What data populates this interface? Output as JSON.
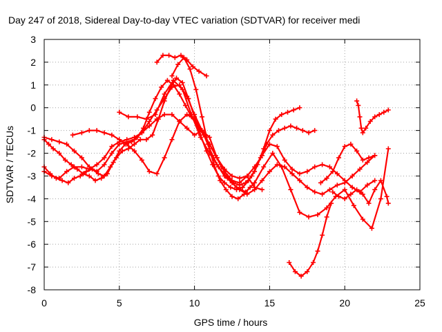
{
  "chart_data": {
    "type": "scatter",
    "title": "Day 247 of 2018, Sidereal Day-to-day VTEC variation (SDTVAR) for receiver medi",
    "xlabel": "GPS time / hours",
    "ylabel": "SDTVAR / TECUs",
    "xlim": [
      0,
      25
    ],
    "ylim": [
      -8,
      3
    ],
    "xticks": [
      0,
      5,
      10,
      15,
      20,
      25
    ],
    "yticks": [
      -8,
      -7,
      -6,
      -5,
      -4,
      -3,
      -2,
      -1,
      0,
      1,
      2,
      3
    ],
    "grid": true,
    "marker": "+",
    "color": "#ff0000",
    "series": [
      {
        "x": [
          0,
          0.3,
          0.6,
          1.0,
          1.4,
          1.8,
          2.2,
          2.6,
          3.0,
          3.4,
          3.8,
          4.2,
          4.6,
          5.0,
          5.4,
          5.8,
          6.2,
          6.6,
          7.0,
          7.4,
          7.8,
          8.2,
          8.6,
          9.0,
          9.4,
          9.8,
          10.2,
          10.6,
          11.0,
          11.4,
          11.8,
          12.2,
          12.6,
          13.0,
          13.4,
          13.8,
          14.2,
          14.6,
          15.0,
          15.4,
          15.8,
          16.2,
          16.6,
          17.0
        ],
        "y": [
          -1.4,
          -1.6,
          -1.8,
          -2.0,
          -2.3,
          -2.5,
          -2.7,
          -2.9,
          -3.0,
          -3.2,
          -3.1,
          -2.9,
          -2.4,
          -1.9,
          -1.6,
          -1.5,
          -1.3,
          -0.9,
          -0.2,
          0.4,
          0.9,
          1.2,
          1.0,
          0.6,
          0.1,
          -0.4,
          -0.8,
          -1.2,
          -1.6,
          -2.1,
          -2.6,
          -3.0,
          -3.3,
          -3.4,
          -3.3,
          -3.0,
          -2.5,
          -1.8,
          -1.0,
          -0.5,
          -0.3,
          -0.2,
          -0.1,
          0.0
        ]
      },
      {
        "x": [
          0,
          0.4,
          0.8,
          1.2,
          1.6,
          2.0,
          2.4,
          2.8,
          3.2,
          3.6,
          4.0,
          4.4,
          4.8,
          5.2,
          5.6,
          6.0,
          6.4,
          6.8,
          7.2,
          7.6,
          8.0,
          8.4,
          8.8,
          9.2,
          9.6,
          10.0,
          10.4,
          10.8,
          11.2,
          11.6,
          12.0,
          12.4,
          12.8,
          13.2,
          13.6,
          14.0,
          14.4,
          14.8,
          15.2,
          15.6,
          16.0,
          16.4,
          16.8,
          17.2,
          17.6,
          18.0
        ],
        "y": [
          -2.6,
          -2.9,
          -3.1,
          -3.2,
          -3.3,
          -3.1,
          -3.0,
          -2.8,
          -2.7,
          -2.9,
          -3.0,
          -2.6,
          -2.2,
          -1.9,
          -1.8,
          -1.6,
          -1.4,
          -1.4,
          -1.2,
          -0.5,
          0.3,
          0.9,
          1.3,
          1.1,
          0.4,
          -0.4,
          -1.2,
          -1.9,
          -2.5,
          -3.0,
          -3.3,
          -3.5,
          -3.6,
          -3.5,
          -3.2,
          -2.8,
          -2.2,
          -1.6,
          -1.2,
          -1.0,
          -0.9,
          -0.8,
          -0.9,
          -1.0,
          -1.1,
          -1.0
        ]
      },
      {
        "x": [
          0,
          0.5,
          1.0,
          1.5,
          2.0,
          2.5,
          3.0,
          3.5,
          4.0,
          4.5,
          5.0,
          5.5,
          6.0,
          6.5,
          7.0,
          7.5,
          8.0,
          8.5,
          9.0,
          9.5,
          10.0,
          10.5,
          11.0,
          11.5,
          12.0,
          12.5,
          13.0,
          13.5,
          14.0,
          14.5,
          15.0,
          15.5,
          16.0,
          16.5,
          17.0,
          17.5,
          18.0,
          18.5,
          19.0,
          19.5,
          20.0,
          20.5,
          21.0,
          21.5,
          22.0
        ],
        "y": [
          -2.8,
          -3.0,
          -3.1,
          -2.8,
          -2.6,
          -2.6,
          -2.7,
          -2.5,
          -2.2,
          -1.7,
          -1.5,
          -1.4,
          -1.3,
          -1.1,
          -0.8,
          -0.5,
          -0.3,
          -0.3,
          -0.6,
          -0.9,
          -1.2,
          -1.0,
          -1.3,
          -2.2,
          -2.8,
          -3.2,
          -3.3,
          -3.0,
          -2.6,
          -2.1,
          -1.6,
          -1.7,
          -2.3,
          -2.7,
          -2.9,
          -2.8,
          -2.6,
          -2.5,
          -2.6,
          -2.9,
          -3.2,
          -3.5,
          -3.7,
          -3.4,
          -3.2
        ]
      },
      {
        "x": [
          1.9,
          2.5,
          3.0,
          3.5,
          4.0,
          4.5,
          5.0,
          5.5,
          6.0,
          6.5,
          7.0,
          7.5,
          8.0,
          8.5,
          9.0,
          9.5,
          10.0,
          10.5,
          11.0,
          11.5,
          12.0,
          12.5,
          13.0,
          13.5,
          14.0,
          14.5,
          15.0,
          15.5,
          16.0,
          16.5,
          17.0,
          17.5,
          18.0,
          18.5,
          19.0,
          19.5,
          20.0,
          20.5,
          21.0,
          21.5,
          22.0
        ],
        "y": [
          -1.2,
          -1.1,
          -1.0,
          -1.0,
          -1.1,
          -1.2,
          -1.4,
          -1.6,
          -1.9,
          -2.3,
          -2.8,
          -2.9,
          -2.2,
          -1.4,
          -0.6,
          -0.3,
          -0.5,
          -1.0,
          -1.8,
          -2.5,
          -3.0,
          -3.3,
          -3.6,
          -3.8,
          -3.6,
          -3.2,
          -2.8,
          -2.5,
          -2.6,
          -2.9,
          -3.2,
          -3.5,
          -3.7,
          -3.8,
          -3.6,
          -3.4,
          -3.3,
          -3.0,
          -2.7,
          -2.4,
          -2.1
        ]
      },
      {
        "x": [
          0,
          0.5,
          1.0,
          1.5,
          2.0,
          2.5,
          3.0,
          3.5,
          4.0,
          4.5,
          5.0,
          5.5,
          6.0,
          6.5,
          7.0,
          7.5,
          8.0,
          8.5,
          9.0,
          9.5,
          10.0,
          10.5,
          11.0,
          11.5,
          12.0,
          12.5,
          13.0,
          13.5,
          14.0,
          14.5
        ],
        "y": [
          -1.3,
          -1.4,
          -1.5,
          -1.6,
          -1.9,
          -2.2,
          -2.6,
          -2.8,
          -2.5,
          -2.0,
          -1.6,
          -1.5,
          -1.4,
          -1.1,
          -0.6,
          -0.1,
          0.4,
          0.9,
          1.0,
          0.5,
          -0.3,
          -1.0,
          -1.6,
          -2.2,
          -2.7,
          -3.0,
          -3.1,
          -3.0,
          -3.5,
          -3.6
        ]
      },
      {
        "x": [
          5.0,
          5.6,
          6.2,
          6.8,
          7.4,
          8.0,
          8.6,
          9.2,
          9.8,
          10.4,
          11.0,
          11.6,
          12.2,
          12.8,
          13.4,
          14.0,
          14.6,
          15.2,
          15.8,
          16.4,
          17.0,
          17.6,
          18.2,
          18.8,
          19.4,
          20.0,
          20.6,
          21.2,
          21.8,
          22.4,
          22.9
        ],
        "y": [
          -0.2,
          -0.4,
          -0.4,
          -0.5,
          -0.3,
          0.6,
          1.2,
          0.8,
          -0.3,
          -1.3,
          -2.0,
          -2.6,
          -3.1,
          -3.5,
          -3.7,
          -3.3,
          -2.6,
          -2.0,
          -2.6,
          -3.6,
          -4.6,
          -4.8,
          -4.7,
          -4.4,
          -3.9,
          -3.6,
          -4.3,
          -4.9,
          -5.3,
          -4.0,
          -1.8
        ]
      },
      {
        "x": [
          7.5,
          7.9,
          8.3,
          8.7,
          9.1,
          9.5,
          9.9,
          10.3,
          10.8
        ],
        "y": [
          2.0,
          2.3,
          2.3,
          2.2,
          2.3,
          2.1,
          1.8,
          1.6,
          1.4
        ]
      },
      {
        "x": [
          8.5,
          8.9,
          9.3,
          9.7,
          10.1,
          10.5,
          10.9,
          11.3,
          11.7,
          12.1,
          12.5,
          12.9,
          13.3,
          13.7
        ],
        "y": [
          1.4,
          1.9,
          2.2,
          1.7,
          0.8,
          -0.4,
          -1.6,
          -2.5,
          -3.2,
          -3.6,
          -3.9,
          -4.0,
          -3.8,
          -3.5
        ]
      },
      {
        "x": [
          16.3,
          16.7,
          17.1,
          17.5,
          17.9,
          18.2,
          18.5,
          18.8,
          19.1
        ],
        "y": [
          -6.8,
          -7.2,
          -7.4,
          -7.2,
          -6.8,
          -6.3,
          -5.6,
          -4.8,
          -4.2
        ]
      },
      {
        "x": [
          20.8,
          20.9,
          21.0,
          21.1,
          21.2,
          21.4,
          21.7,
          22.0,
          22.3,
          22.6,
          22.9
        ],
        "y": [
          0.3,
          0.1,
          -0.4,
          -0.9,
          -1.1,
          -0.9,
          -0.6,
          -0.4,
          -0.3,
          -0.2,
          -0.1
        ]
      },
      {
        "x": [
          19.2,
          19.6,
          20.0,
          20.4,
          20.8,
          21.2,
          21.6,
          22.0,
          22.4,
          22.8,
          22.9
        ],
        "y": [
          -3.7,
          -3.9,
          -4.0,
          -3.8,
          -3.6,
          -3.8,
          -4.2,
          -3.6,
          -3.2,
          -3.9,
          -4.2
        ]
      },
      {
        "x": [
          18.4,
          18.8,
          19.2,
          19.6,
          20.0,
          20.4,
          20.8,
          21.2,
          21.6,
          22.0
        ],
        "y": [
          -3.3,
          -3.1,
          -2.8,
          -2.2,
          -1.7,
          -1.6,
          -1.9,
          -2.3,
          -2.2,
          -2.1
        ]
      }
    ]
  }
}
